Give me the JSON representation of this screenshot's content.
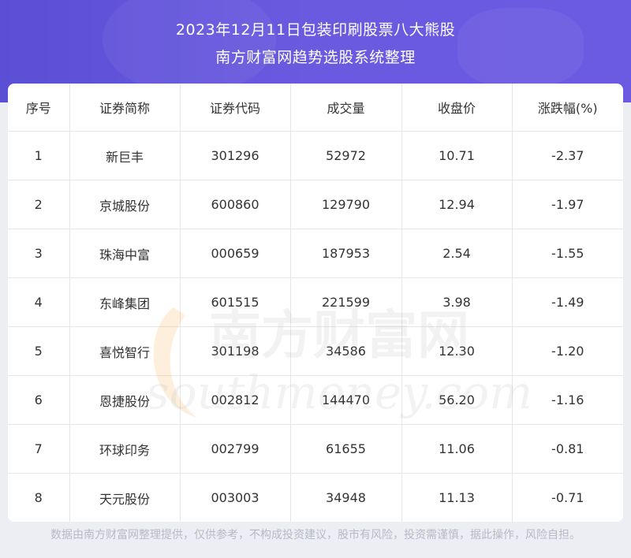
{
  "header": {
    "title_line1": "2023年12月11日包装印刷股票八大熊股",
    "title_line2": "南方财富网趋势选股系统整理"
  },
  "table": {
    "columns": [
      "序号",
      "证券简称",
      "证券代码",
      "成交量",
      "收盘价",
      "涨跌幅(%)"
    ],
    "rows": [
      [
        "1",
        "新巨丰",
        "301296",
        "52972",
        "10.71",
        "-2.37"
      ],
      [
        "2",
        "京城股份",
        "600860",
        "129790",
        "12.94",
        "-1.97"
      ],
      [
        "3",
        "珠海中富",
        "000659",
        "187953",
        "2.54",
        "-1.55"
      ],
      [
        "4",
        "东峰集团",
        "601515",
        "221599",
        "3.98",
        "-1.49"
      ],
      [
        "5",
        "喜悦智行",
        "301198",
        "34586",
        "12.30",
        "-1.20"
      ],
      [
        "6",
        "恩捷股份",
        "002812",
        "144470",
        "56.20",
        "-1.16"
      ],
      [
        "7",
        "环球印务",
        "002799",
        "61655",
        "11.06",
        "-0.81"
      ],
      [
        "8",
        "天元股份",
        "003003",
        "34948",
        "11.13",
        "-0.71"
      ]
    ]
  },
  "watermark": {
    "text_cn": "南方财富网",
    "text_en": "southmoney.com"
  },
  "footer": {
    "disclaimer": "数据由南方财富网整理提供，仅供参考，不构成投资建议，股市有风险，投资需谨慎，据此操作，风险自担。"
  },
  "colors": {
    "header_bg": "#5b4fd6",
    "watermark_orange": "#f3a53a"
  }
}
